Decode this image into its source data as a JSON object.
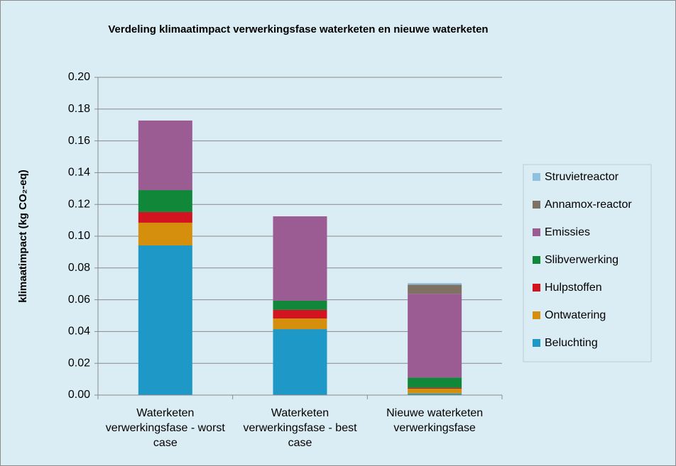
{
  "chart_data": {
    "type": "stacked_bar",
    "title": "Verdeling klimaatimpact verwerkingsfase waterketen en nieuwe waterketen",
    "y_label": "klimaatimpact (kg CO₂-eq)",
    "categories": [
      "Waterketen verwerkingsfase - worst case",
      "Waterketen verwerkingsfase - best case",
      "Nieuwe waterketen verwerkingsfase"
    ],
    "series": [
      {
        "name": "Beluchting",
        "color": "#1e98c6",
        "values": [
          0.0942,
          0.0415,
          0.001
        ]
      },
      {
        "name": "Ontwatering",
        "color": "#d68f0c",
        "values": [
          0.0143,
          0.0067,
          0.003
        ]
      },
      {
        "name": "Hulpstoffen",
        "color": "#d3131f",
        "values": [
          0.0067,
          0.0054,
          0.0005
        ]
      },
      {
        "name": "Slibverwerking",
        "color": "#11873a",
        "values": [
          0.0138,
          0.0058,
          0.0065
        ]
      },
      {
        "name": "Emissies",
        "color": "#9b5b93",
        "values": [
          0.0438,
          0.0531,
          0.0527
        ]
      },
      {
        "name": "Annamox-reactor",
        "color": "#7f7163",
        "values": [
          0,
          0,
          0.0058
        ]
      },
      {
        "name": "Struvietreactor",
        "color": "#8ec0e0",
        "values": [
          0,
          0,
          0.001
        ]
      }
    ],
    "ylim": [
      0,
      0.2
    ],
    "yticks": [
      {
        "value": 0,
        "label": "0.00"
      },
      {
        "value": 0.02,
        "label": "0.02"
      },
      {
        "value": 0.04,
        "label": "0.04"
      },
      {
        "value": 0.06,
        "label": "0.06"
      },
      {
        "value": 0.08,
        "label": "0.08"
      },
      {
        "value": 0.1,
        "label": "0.10"
      },
      {
        "value": 0.12,
        "label": "0.12"
      },
      {
        "value": 0.14,
        "label": "0.14"
      },
      {
        "value": 0.16,
        "label": "0.16"
      },
      {
        "value": 0.18,
        "label": "0.18"
      },
      {
        "value": 0.2,
        "label": "0.20"
      }
    ],
    "grid": true,
    "legend": "right"
  }
}
